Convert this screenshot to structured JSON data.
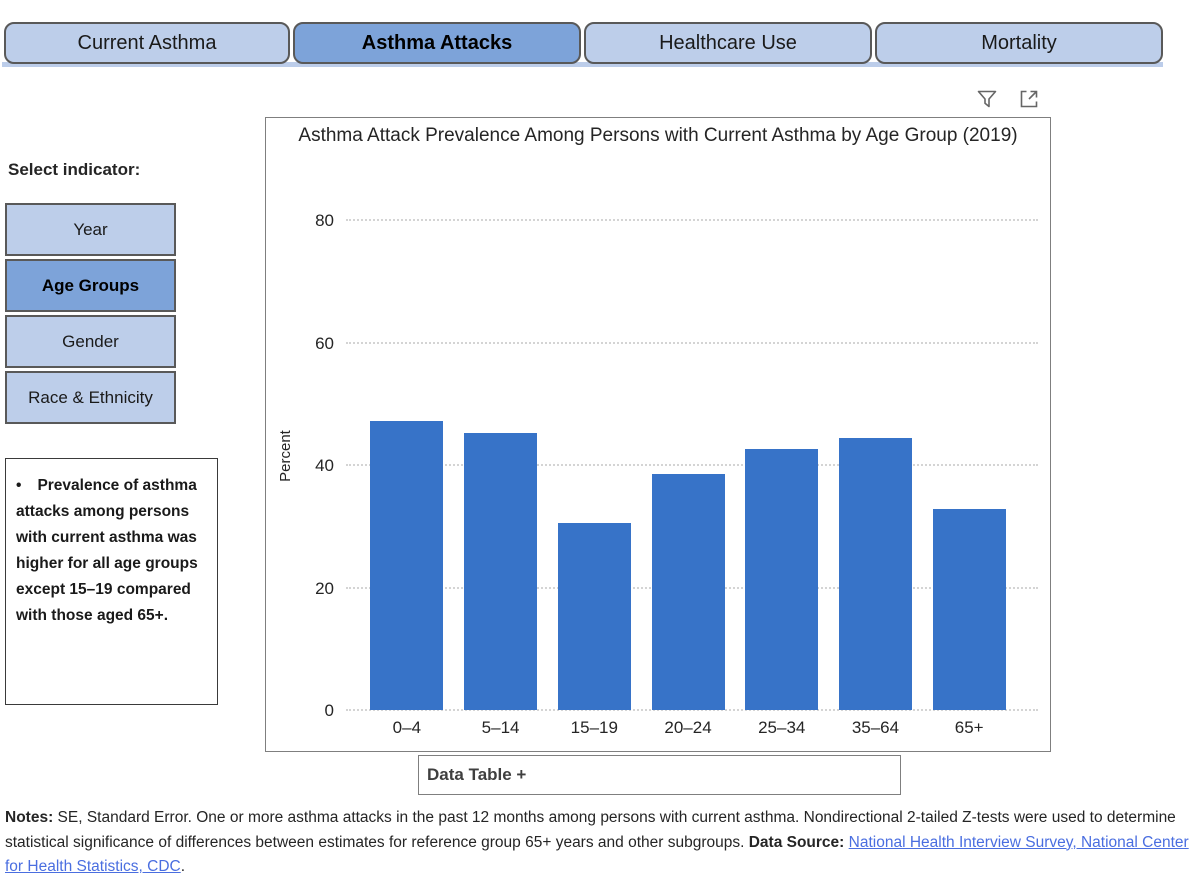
{
  "tabs": {
    "items": [
      {
        "label": "Current Asthma",
        "selected": false
      },
      {
        "label": "Asthma Attacks",
        "selected": true
      },
      {
        "label": "Healthcare Use",
        "selected": false
      },
      {
        "label": "Mortality",
        "selected": false
      }
    ]
  },
  "visual_header": {
    "icons": [
      "filter-icon",
      "focus-mode-icon"
    ]
  },
  "sidebar": {
    "heading": "Select indicator:",
    "items": [
      {
        "label": "Year",
        "selected": false
      },
      {
        "label": "Age Groups",
        "selected": true
      },
      {
        "label": "Gender",
        "selected": false
      },
      {
        "label": "Race & Ethnicity",
        "selected": false
      }
    ],
    "callout": {
      "bullet": "•",
      "text": "Prevalence of asthma attacks among persons with current asthma was higher for all age groups except 15–19 compared with those aged 65+."
    }
  },
  "chart_data": {
    "type": "bar",
    "title": "Asthma Attack Prevalence Among Persons with Current Asthma by Age Group (2019)",
    "categories": [
      "0–4",
      "5–14",
      "15–19",
      "20–24",
      "25–34",
      "35–64",
      "65+"
    ],
    "values": [
      47.2,
      45.2,
      30.5,
      38.6,
      42.7,
      44.5,
      32.8
    ],
    "xlabel": "",
    "ylabel": "Percent",
    "ylim": [
      0,
      84
    ],
    "yticks": [
      0,
      20,
      40,
      60,
      80
    ],
    "grid": "dotted-horizontal",
    "legend": "none",
    "bar_color": "#3773c8"
  },
  "data_table": {
    "label": "Data Table +"
  },
  "notes": {
    "notes_label": "Notes:",
    "body": " SE, Standard Error. One or more asthma attacks in the past 12 months among persons with current asthma. Nondirectional 2-tailed Z-tests were used to determine statistical significance of differences between estimates for reference group 65+ years and other subgroups. ",
    "datasource_label": "Data Source:",
    "link": "National Health Interview Survey, National Center for Health Statistics, CDC",
    "suffix": "."
  },
  "colors": {
    "tab_unselected": "#bdceea",
    "tab_selected": "#7da3d9",
    "button_border": "#595959",
    "bar_blue": "#3773c8",
    "link_blue": "#4a6ee0",
    "card_border": "#7f7f7f"
  }
}
